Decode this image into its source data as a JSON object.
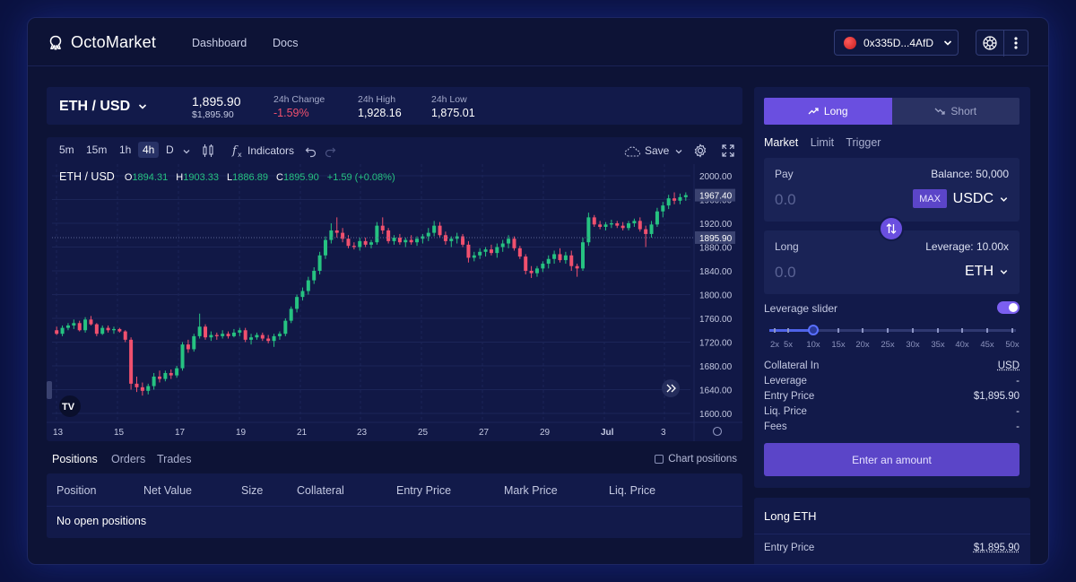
{
  "header": {
    "app_name": "OctoMarket",
    "nav": [
      "Dashboard",
      "Docs"
    ],
    "faded_text": "",
    "wallet_address": "0x335D...4AfD"
  },
  "market": {
    "pair": "ETH / USD",
    "price": "1,895.90",
    "price_usd": "$1,895.90",
    "stats": [
      {
        "label": "24h Change",
        "value": "-1.59%",
        "color": "#f0506e"
      },
      {
        "label": "24h High",
        "value": "1,928.16",
        "color": "#ffffff"
      },
      {
        "label": "24h Low",
        "value": "1,875.01",
        "color": "#ffffff"
      }
    ]
  },
  "chart_toolbar": {
    "timeframes": [
      "5m",
      "15m",
      "1h",
      "4h",
      "D"
    ],
    "active_timeframe": "4h",
    "indicators_label": "Indicators",
    "save_label": "Save"
  },
  "chart_legend": {
    "symbol": "ETH / USD",
    "o_label": "O",
    "o_value": "1894.31",
    "h_label": "H",
    "h_value": "1903.33",
    "l_label": "L",
    "l_value": "1886.89",
    "c_label": "C",
    "c_value": "1895.90",
    "change": "+1.59 (+0.08%)"
  },
  "chart_data": {
    "type": "candlestick",
    "title": "",
    "y_ticks": [
      "2000.00",
      "1960.00",
      "1920.00",
      "1880.00",
      "1840.00",
      "1800.00",
      "1760.00",
      "1720.00",
      "1680.00",
      "1640.00",
      "1600.00"
    ],
    "x_ticks": [
      "13",
      "15",
      "17",
      "19",
      "21",
      "23",
      "25",
      "27",
      "29",
      "Jul",
      "3"
    ],
    "ylim": [
      1600,
      2000
    ],
    "last_price_label": "1967.40",
    "current_price_label": "1895.90",
    "current_price": 1895.9,
    "candles": [
      [
        1740,
        1746,
        1732,
        1734
      ],
      [
        1734,
        1748,
        1730,
        1744
      ],
      [
        1744,
        1752,
        1740,
        1748
      ],
      [
        1748,
        1758,
        1742,
        1752
      ],
      [
        1752,
        1756,
        1738,
        1740
      ],
      [
        1740,
        1762,
        1736,
        1758
      ],
      [
        1758,
        1764,
        1748,
        1750
      ],
      [
        1750,
        1752,
        1730,
        1734
      ],
      [
        1734,
        1748,
        1732,
        1744
      ],
      [
        1744,
        1748,
        1736,
        1740
      ],
      [
        1740,
        1746,
        1734,
        1742
      ],
      [
        1742,
        1744,
        1736,
        1738
      ],
      [
        1738,
        1740,
        1720,
        1724
      ],
      [
        1724,
        1728,
        1640,
        1650
      ],
      [
        1650,
        1662,
        1636,
        1644
      ],
      [
        1644,
        1652,
        1630,
        1638
      ],
      [
        1638,
        1650,
        1632,
        1646
      ],
      [
        1646,
        1668,
        1640,
        1662
      ],
      [
        1662,
        1672,
        1652,
        1658
      ],
      [
        1658,
        1672,
        1654,
        1668
      ],
      [
        1668,
        1674,
        1658,
        1664
      ],
      [
        1664,
        1680,
        1660,
        1676
      ],
      [
        1676,
        1720,
        1672,
        1716
      ],
      [
        1716,
        1724,
        1702,
        1708
      ],
      [
        1708,
        1734,
        1704,
        1730
      ],
      [
        1730,
        1768,
        1726,
        1746
      ],
      [
        1746,
        1750,
        1724,
        1728
      ],
      [
        1728,
        1738,
        1722,
        1732
      ],
      [
        1732,
        1736,
        1724,
        1730
      ],
      [
        1730,
        1740,
        1726,
        1734
      ],
      [
        1734,
        1738,
        1726,
        1730
      ],
      [
        1730,
        1742,
        1728,
        1736
      ],
      [
        1736,
        1744,
        1730,
        1740
      ],
      [
        1740,
        1744,
        1720,
        1724
      ],
      [
        1724,
        1734,
        1716,
        1728
      ],
      [
        1728,
        1736,
        1724,
        1732
      ],
      [
        1732,
        1736,
        1722,
        1726
      ],
      [
        1726,
        1732,
        1718,
        1722
      ],
      [
        1722,
        1734,
        1712,
        1730
      ],
      [
        1730,
        1738,
        1724,
        1734
      ],
      [
        1734,
        1760,
        1730,
        1756
      ],
      [
        1756,
        1780,
        1752,
        1776
      ],
      [
        1776,
        1800,
        1770,
        1796
      ],
      [
        1796,
        1812,
        1790,
        1806
      ],
      [
        1806,
        1830,
        1800,
        1824
      ],
      [
        1824,
        1846,
        1818,
        1840
      ],
      [
        1840,
        1872,
        1834,
        1866
      ],
      [
        1866,
        1898,
        1860,
        1892
      ],
      [
        1892,
        1920,
        1886,
        1908
      ],
      [
        1908,
        1930,
        1896,
        1904
      ],
      [
        1904,
        1912,
        1888,
        1894
      ],
      [
        1894,
        1900,
        1878,
        1882
      ],
      [
        1882,
        1888,
        1876,
        1880
      ],
      [
        1880,
        1896,
        1874,
        1890
      ],
      [
        1890,
        1896,
        1880,
        1884
      ],
      [
        1884,
        1892,
        1878,
        1888
      ],
      [
        1888,
        1922,
        1884,
        1916
      ],
      [
        1916,
        1930,
        1902,
        1908
      ],
      [
        1908,
        1912,
        1886,
        1890
      ],
      [
        1890,
        1900,
        1884,
        1896
      ],
      [
        1896,
        1902,
        1884,
        1888
      ],
      [
        1888,
        1896,
        1880,
        1892
      ],
      [
        1892,
        1900,
        1884,
        1888
      ],
      [
        1888,
        1898,
        1882,
        1894
      ],
      [
        1894,
        1902,
        1886,
        1898
      ],
      [
        1898,
        1912,
        1890,
        1904
      ],
      [
        1904,
        1924,
        1898,
        1916
      ],
      [
        1916,
        1922,
        1896,
        1900
      ],
      [
        1900,
        1906,
        1884,
        1890
      ],
      [
        1890,
        1898,
        1880,
        1894
      ],
      [
        1894,
        1904,
        1886,
        1898
      ],
      [
        1898,
        1902,
        1880,
        1884
      ],
      [
        1884,
        1890,
        1854,
        1862
      ],
      [
        1862,
        1872,
        1856,
        1866
      ],
      [
        1866,
        1878,
        1860,
        1872
      ],
      [
        1872,
        1880,
        1864,
        1876
      ],
      [
        1876,
        1884,
        1866,
        1870
      ],
      [
        1870,
        1886,
        1862,
        1880
      ],
      [
        1880,
        1892,
        1872,
        1886
      ],
      [
        1886,
        1900,
        1878,
        1894
      ],
      [
        1894,
        1898,
        1874,
        1878
      ],
      [
        1878,
        1882,
        1860,
        1864
      ],
      [
        1864,
        1868,
        1834,
        1840
      ],
      [
        1840,
        1848,
        1828,
        1836
      ],
      [
        1836,
        1848,
        1830,
        1844
      ],
      [
        1844,
        1856,
        1838,
        1852
      ],
      [
        1852,
        1866,
        1844,
        1860
      ],
      [
        1860,
        1874,
        1852,
        1868
      ],
      [
        1868,
        1878,
        1854,
        1858
      ],
      [
        1858,
        1872,
        1852,
        1866
      ],
      [
        1866,
        1874,
        1840,
        1848
      ],
      [
        1848,
        1852,
        1830,
        1844
      ],
      [
        1844,
        1896,
        1840,
        1888
      ],
      [
        1888,
        1938,
        1882,
        1930
      ],
      [
        1930,
        1934,
        1914,
        1918
      ],
      [
        1918,
        1924,
        1910,
        1914
      ],
      [
        1914,
        1922,
        1908,
        1918
      ],
      [
        1918,
        1926,
        1912,
        1920
      ],
      [
        1920,
        1924,
        1912,
        1916
      ],
      [
        1916,
        1922,
        1908,
        1912
      ],
      [
        1912,
        1924,
        1908,
        1920
      ],
      [
        1920,
        1928,
        1914,
        1924
      ],
      [
        1924,
        1930,
        1906,
        1910
      ],
      [
        1910,
        1916,
        1880,
        1902
      ],
      [
        1902,
        1924,
        1896,
        1918
      ],
      [
        1918,
        1946,
        1914,
        1940
      ],
      [
        1940,
        1956,
        1930,
        1950
      ],
      [
        1950,
        1968,
        1944,
        1962
      ],
      [
        1962,
        1972,
        1952,
        1958
      ],
      [
        1958,
        1970,
        1952,
        1964
      ],
      [
        1964,
        1972,
        1958,
        1967.4
      ]
    ]
  },
  "bottom_tabs": {
    "tabs": [
      "Positions",
      "Orders",
      "Trades"
    ],
    "chart_positions_label": "Chart positions"
  },
  "positions_table": {
    "columns": [
      "Position",
      "Net Value",
      "Size",
      "Collateral",
      "Entry Price",
      "Mark Price",
      "Liq. Price"
    ],
    "empty_text": "No open positions"
  },
  "trade_panel": {
    "long_label": "Long",
    "short_label": "Short",
    "order_types": [
      "Market",
      "Limit",
      "Trigger"
    ],
    "pay": {
      "label": "Pay",
      "balance": "Balance: 50,000",
      "amount": "0.0",
      "max": "MAX",
      "token": "USDC"
    },
    "receive": {
      "label": "Long",
      "leverage": "Leverage: 10.00x",
      "amount": "0.0",
      "token": "ETH"
    },
    "leverage_slider_label": "Leverage slider",
    "leverage_ticks": [
      "2x",
      "5x",
      "10x",
      "15x",
      "20x",
      "25x",
      "30x",
      "35x",
      "40x",
      "45x",
      "50x"
    ],
    "leverage_value": 10,
    "info": [
      {
        "label": "Collateral In",
        "value": "USD",
        "underline": true
      },
      {
        "label": "Leverage",
        "value": "-",
        "underline": false
      },
      {
        "label": "Entry Price",
        "value": "$1,895.90",
        "underline": false
      },
      {
        "label": "Liq. Price",
        "value": "-",
        "underline": false
      },
      {
        "label": "Fees",
        "value": "-",
        "underline": false
      }
    ],
    "cta_label": "Enter an amount"
  },
  "long_panel": {
    "title": "Long ETH",
    "entry_price_label": "Entry Price",
    "entry_price_value": "$1,895.90"
  },
  "colors": {
    "up": "#26c281",
    "down": "#f0506e",
    "accent": "#6a4fe0"
  }
}
